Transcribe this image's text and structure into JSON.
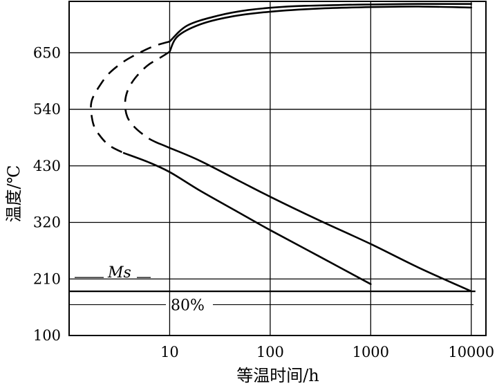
{
  "chart_data": {
    "type": "line",
    "xlabel": "等温时间/h",
    "ylabel": "温度/℃",
    "x_scale": "log",
    "xlim": [
      1,
      14000
    ],
    "ylim": [
      100,
      750
    ],
    "x_ticks": [
      {
        "value": 10,
        "label": "10"
      },
      {
        "value": 100,
        "label": "100"
      },
      {
        "value": 1000,
        "label": "1000"
      },
      {
        "value": 10000,
        "label": "10000"
      }
    ],
    "y_ticks": [
      {
        "value": 100,
        "label": "100"
      },
      {
        "value": 210,
        "label": "210"
      },
      {
        "value": 320,
        "label": "320"
      },
      {
        "value": 430,
        "label": "430"
      },
      {
        "value": 540,
        "label": "540"
      },
      {
        "value": 650,
        "label": "650"
      }
    ],
    "grid": true,
    "series": [
      {
        "x": [
          10000,
          3000,
          1000,
          500,
          150,
          60,
          30,
          15,
          10
        ],
        "y": [
          745,
          745,
          744,
          743,
          740,
          733,
          722,
          703,
          672
        ],
        "style": "solid"
      },
      {
        "x": [
          10,
          7,
          5,
          3.5,
          2.5,
          2.0,
          1.7,
          1.65,
          1.75,
          2.0,
          2.5,
          3.5
        ],
        "y": [
          672,
          663,
          650,
          633,
          610,
          585,
          560,
          540,
          510,
          490,
          470,
          455
        ],
        "style": "dashed"
      },
      {
        "x": [
          3.5,
          6,
          10,
          20,
          50,
          100,
          300,
          1000
        ],
        "y": [
          455,
          438,
          418,
          382,
          338,
          305,
          255,
          200
        ],
        "style": "solid"
      },
      {
        "x": [
          10000,
          3000,
          1000,
          300,
          100,
          40,
          20,
          12,
          10
        ],
        "y": [
          738,
          740,
          739,
          736,
          730,
          720,
          705,
          682,
          652
        ],
        "style": "solid"
      },
      {
        "x": [
          10,
          8,
          6,
          4.5,
          3.8,
          3.6,
          3.8,
          4.5,
          6,
          7.5
        ],
        "y": [
          652,
          640,
          625,
          600,
          575,
          550,
          525,
          505,
          485,
          475
        ],
        "style": "dashed"
      },
      {
        "x": [
          7.5,
          10,
          20,
          50,
          100,
          300,
          1000,
          3000,
          10000
        ],
        "y": [
          475,
          465,
          440,
          400,
          370,
          325,
          278,
          232,
          186
        ],
        "style": "solid"
      }
    ],
    "ms_line": {
      "label": "Ms",
      "y": 186,
      "x_from": 1,
      "x_to": 11000
    },
    "line_80": {
      "label": "80%",
      "y": 160,
      "x_from": 1,
      "x_to": 14000
    }
  }
}
